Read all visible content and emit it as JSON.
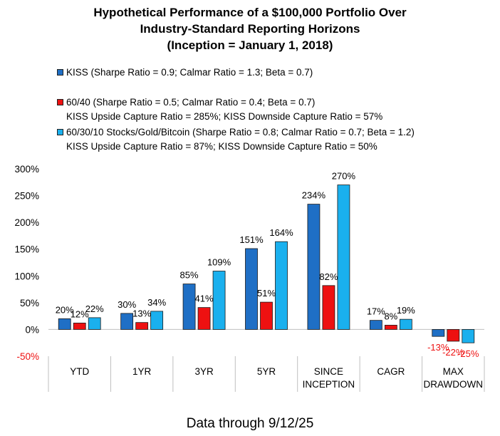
{
  "title_lines": [
    "Hypothetical Performance of a $100,000 Portfolio Over",
    "Industry-Standard Reporting Horizons",
    "(Inception = January 1, 2018)"
  ],
  "legend": [
    {
      "lines": [
        "KISS (Sharpe Ratio = 0.9; Calmar Ratio = 1.3; Beta = 0.7)"
      ],
      "color": "#1f6fc5"
    },
    {
      "lines": [
        "60/40 (Sharpe Ratio = 0.5; Calmar Ratio = 0.4; Beta = 0.7)",
        "KISS Upside Capture Ratio = 285%; KISS Downside Capture Ratio = 57%"
      ],
      "color": "#ee1111"
    },
    {
      "lines": [
        "60/30/10 Stocks/Gold/Bitcoin (Sharpe Ratio = 0.8; Calmar Ratio = 0.7; Beta = 1.2)",
        "KISS Upside Capture Ratio = 87%; KISS Downside Capture Ratio = 50%"
      ],
      "color": "#1ab0ee"
    }
  ],
  "footer": "Data through  9/12/25",
  "chart_data": {
    "type": "bar",
    "categories": [
      [
        "YTD"
      ],
      [
        "1YR"
      ],
      [
        "3YR"
      ],
      [
        "5YR"
      ],
      [
        "SINCE",
        "INCEPTION"
      ],
      [
        "CAGR"
      ],
      [
        "MAX",
        "DRAWDOWN"
      ]
    ],
    "series": [
      {
        "name": "KISS",
        "color": "#1f6fc5",
        "values": [
          20,
          30,
          85,
          151,
          234,
          17,
          -13
        ]
      },
      {
        "name": "60/40",
        "color": "#ee1111",
        "values": [
          12,
          13,
          41,
          51,
          82,
          8,
          -22
        ]
      },
      {
        "name": "60/30/10 Stocks/Gold/Bitcoin",
        "color": "#1ab0ee",
        "values": [
          22,
          34,
          109,
          164,
          270,
          19,
          -25
        ]
      }
    ],
    "data_labels": [
      [
        "20%",
        "12%",
        "22%"
      ],
      [
        "30%",
        "13%",
        "34%"
      ],
      [
        "85%",
        "41%",
        "109%"
      ],
      [
        "151%",
        "51%",
        "164%"
      ],
      [
        "234%",
        "82%",
        "270%"
      ],
      [
        "17%",
        "8%",
        "19%"
      ],
      [
        "-13%",
        "-22%",
        "-25%"
      ]
    ],
    "y_ticks": [
      {
        "value": 300,
        "label": "300%"
      },
      {
        "value": 250,
        "label": "250%"
      },
      {
        "value": 200,
        "label": "200%"
      },
      {
        "value": 150,
        "label": "150%"
      },
      {
        "value": 100,
        "label": "100%"
      },
      {
        "value": 50,
        "label": "50%"
      },
      {
        "value": 0,
        "label": "0%"
      },
      {
        "value": -50,
        "label": "-50%"
      }
    ],
    "ylim": [
      -50,
      300
    ],
    "negative_label_color": "#ee1111",
    "grid": false
  }
}
